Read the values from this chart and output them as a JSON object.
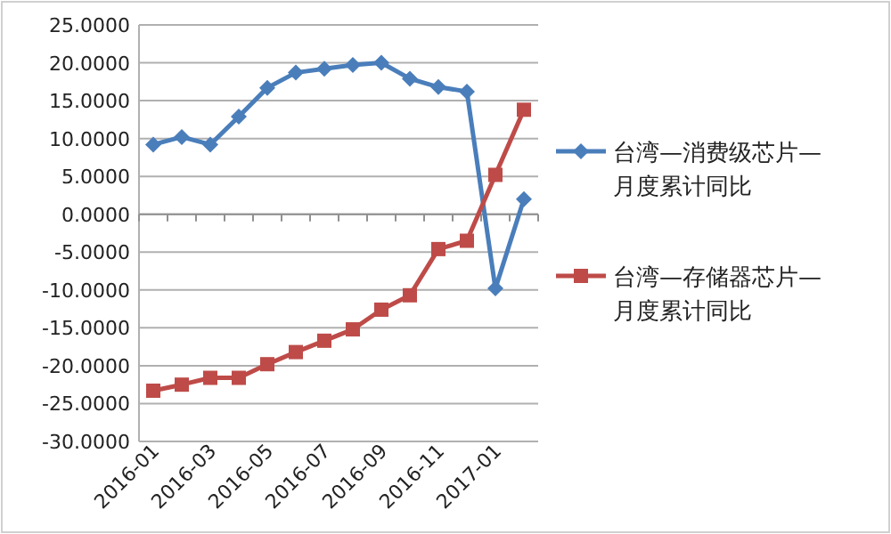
{
  "chart_data": {
    "type": "line",
    "categories": [
      "2016-01",
      null,
      "2016-03",
      null,
      "2016-05",
      null,
      "2016-07",
      null,
      "2016-09",
      null,
      "2016-11",
      null,
      "2017-01",
      null
    ],
    "series": [
      {
        "name": "台湾—消费级芯片—月度累计同比",
        "color": "#4a7ebb",
        "marker": "diamond",
        "values": [
          9.2,
          10.2,
          9.2,
          12.9,
          16.7,
          18.7,
          19.2,
          19.7,
          20.0,
          17.9,
          16.8,
          16.2,
          -9.8,
          2.0
        ]
      },
      {
        "name": "台湾—存储器芯片—月度累计同比",
        "color": "#be4b48",
        "marker": "square",
        "values": [
          -23.3,
          -22.5,
          -21.6,
          -21.6,
          -19.8,
          -18.2,
          -16.7,
          -15.2,
          -12.6,
          -10.7,
          -4.6,
          -3.5,
          5.2,
          13.8
        ]
      }
    ],
    "ylim": [
      -30,
      25
    ],
    "yticks": [
      {
        "value": 25,
        "label": "25.0000"
      },
      {
        "value": 20,
        "label": "20.0000"
      },
      {
        "value": 15,
        "label": "15.0000"
      },
      {
        "value": 10,
        "label": "10.0000"
      },
      {
        "value": 5,
        "label": "5.0000"
      },
      {
        "value": 0,
        "label": "0.0000"
      },
      {
        "value": -5,
        "label": "-5.0000"
      },
      {
        "value": -10,
        "label": "-10.0000"
      },
      {
        "value": -15,
        "label": "-15.0000"
      },
      {
        "value": -20,
        "label": "-20.0000"
      },
      {
        "value": -25,
        "label": "-25.0000"
      },
      {
        "value": -30,
        "label": "-30.0000"
      }
    ],
    "grid": "y",
    "legend": "right",
    "line_style": "solid"
  }
}
